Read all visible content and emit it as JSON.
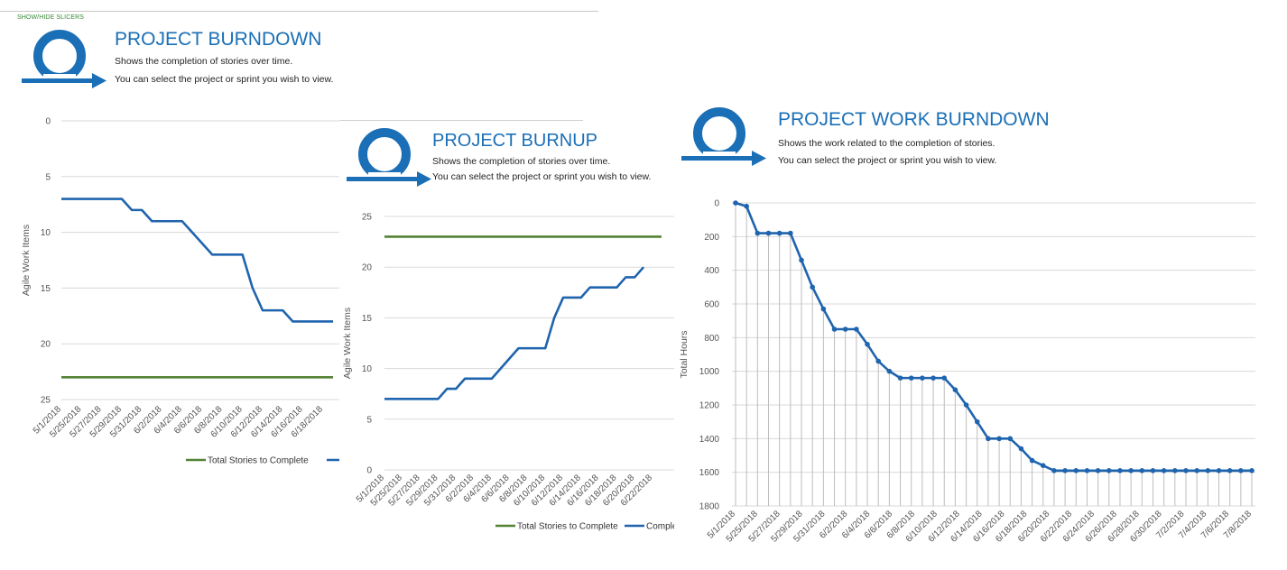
{
  "slicer_toggle": "SHOW/HIDE SLICERS",
  "colors": {
    "accent": "#1a6fb6",
    "target_line": "#548235",
    "series_line": "#1f64ae",
    "grid": "#d9d9d9"
  },
  "panels": {
    "burndown": {
      "title": "PROJECT BURNDOWN",
      "desc1": "Shows the completion of stories over time.",
      "desc2": "You can select the project or sprint you wish to view."
    },
    "burnup": {
      "title": "PROJECT BURNUP",
      "desc1": "Shows the completion of stories over time.",
      "desc2": "You can select the project or sprint you wish to view."
    },
    "work": {
      "title": "PROJECT WORK BURNDOWN",
      "desc1": "Shows the work related to the completion of stories.",
      "desc2": "You can select the project or sprint you wish to view."
    }
  },
  "chart_data": [
    {
      "id": "burndown",
      "type": "line",
      "ylabel": "Agile Work Items",
      "yreversed": true,
      "ylim": [
        0,
        25
      ],
      "yticks": [
        0,
        5,
        10,
        15,
        20,
        25
      ],
      "xticks": [
        "5/1/2018",
        "5/25/2018",
        "5/27/2018",
        "5/29/2018",
        "5/31/2018",
        "6/2/2018",
        "6/4/2018",
        "6/6/2018",
        "6/8/2018",
        "6/10/2018",
        "6/12/2018",
        "6/14/2018",
        "6/16/2018",
        "6/18/2018"
      ],
      "legend": [
        "Total Stories to Complete",
        ""
      ],
      "series": [
        {
          "name": "Total Stories to Complete",
          "color": "#548235",
          "values": [
            23,
            23,
            23,
            23,
            23,
            23,
            23,
            23,
            23,
            23,
            23,
            23,
            23,
            23,
            23,
            23,
            23,
            23,
            23,
            23,
            23,
            23,
            23,
            23,
            23,
            23,
            23,
            23
          ]
        },
        {
          "color": "#1f64ae",
          "values": [
            7,
            7,
            7,
            7,
            7,
            7,
            7,
            8,
            8,
            9,
            9,
            9,
            9,
            10,
            11,
            12,
            12,
            12,
            12,
            15,
            17,
            17,
            17,
            18,
            18,
            18,
            18,
            18
          ]
        }
      ]
    },
    {
      "id": "burnup",
      "type": "line",
      "ylabel": "Agile Work Items",
      "yreversed": false,
      "ylim": [
        0,
        25
      ],
      "yticks": [
        0,
        5,
        10,
        15,
        20,
        25
      ],
      "xticks": [
        "5/1/2018",
        "5/25/2018",
        "5/27/2018",
        "5/29/2018",
        "5/31/2018",
        "6/2/2018",
        "6/4/2018",
        "6/6/2018",
        "6/8/2018",
        "6/10/2018",
        "6/12/2018",
        "6/14/2018",
        "6/16/2018",
        "6/18/2018",
        "6/20/2018",
        "6/22/2018"
      ],
      "legend": [
        "Total Stories to Complete",
        "Comple"
      ],
      "series": [
        {
          "name": "Total Stories to Complete",
          "color": "#548235",
          "values": [
            23,
            23,
            23,
            23,
            23,
            23,
            23,
            23,
            23,
            23,
            23,
            23,
            23,
            23,
            23,
            23,
            23,
            23,
            23,
            23,
            23,
            23,
            23,
            23,
            23,
            23,
            23,
            23,
            23,
            23,
            23,
            23
          ]
        },
        {
          "color": "#1f64ae",
          "values": [
            7,
            7,
            7,
            7,
            7,
            7,
            7,
            8,
            8,
            9,
            9,
            9,
            9,
            10,
            11,
            12,
            12,
            12,
            12,
            15,
            17,
            17,
            17,
            18,
            18,
            18,
            18,
            19,
            19,
            20
          ]
        }
      ]
    },
    {
      "id": "work",
      "type": "line",
      "ylabel": "Total Hours",
      "yreversed": true,
      "ylim": [
        0,
        1800
      ],
      "yticks": [
        0,
        200,
        400,
        600,
        800,
        1000,
        1200,
        1400,
        1600,
        1800
      ],
      "xticks": [
        "5/1/2018",
        "5/25/2018",
        "5/27/2018",
        "5/29/2018",
        "5/31/2018",
        "6/2/2018",
        "6/4/2018",
        "6/6/2018",
        "6/8/2018",
        "6/10/2018",
        "6/12/2018",
        "6/14/2018",
        "6/16/2018",
        "6/18/2018",
        "6/20/2018",
        "6/22/2018",
        "6/24/2018",
        "6/26/2018",
        "6/28/2018",
        "6/30/2018",
        "7/2/2018",
        "7/4/2018",
        "7/6/2018",
        "7/8/2018"
      ],
      "series": [
        {
          "color": "#1f64ae",
          "markers": true,
          "values": [
            0,
            20,
            180,
            180,
            180,
            180,
            340,
            500,
            630,
            750,
            750,
            750,
            840,
            940,
            1000,
            1040,
            1040,
            1040,
            1040,
            1040,
            1110,
            1200,
            1300,
            1400,
            1400,
            1400,
            1460,
            1530,
            1560,
            1590,
            1590,
            1590,
            1590,
            1590,
            1590,
            1590,
            1590,
            1590,
            1590,
            1590,
            1590,
            1590,
            1590,
            1590,
            1590,
            1590,
            1590,
            1590
          ]
        }
      ]
    }
  ]
}
